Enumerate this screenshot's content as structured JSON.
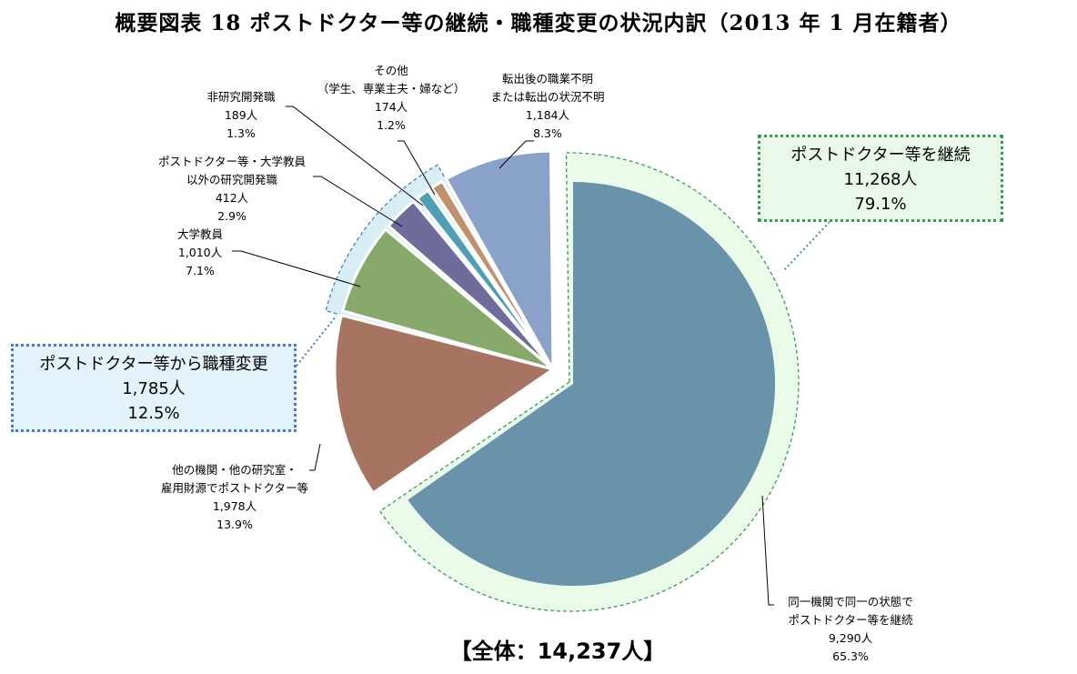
{
  "title": "概要図表 18 ポストドクター等の継続・職種変更の状況内訳（2013 年 1 月在籍者）",
  "chart_data": {
    "type": "pie",
    "title": "概要図表 18 ポストドクター等の継続・職種変更の状況内訳（2013 年 1 月在籍者）",
    "total_label": "【全体：14,237人】",
    "start": "top",
    "direction": "clockwise",
    "slices": [
      {
        "lines": [
          "同一機関で同一の状態で",
          "ポストドクター等を継続"
        ],
        "count": "9,290人",
        "value": 9290,
        "percent": "65.3%",
        "color": "#6893aa",
        "group": "continue"
      },
      {
        "lines": [
          "他の機関・他の研究室・",
          "雇用財源でポストドクター等"
        ],
        "count": "1,978人",
        "value": 1978,
        "percent": "13.9%",
        "color": "#a87462",
        "group": "other"
      },
      {
        "lines": [
          "大学教員"
        ],
        "count": "1,010人",
        "value": 1010,
        "percent": "7.1%",
        "color": "#87a96b",
        "group": "change"
      },
      {
        "lines": [
          "ポストドクター等・大学教員",
          "以外の研究開発職"
        ],
        "count": "412人",
        "value": 412,
        "percent": "2.9%",
        "color": "#6f6c9b",
        "group": "change"
      },
      {
        "lines": [
          "非研究開発職"
        ],
        "count": "189人",
        "value": 189,
        "percent": "1.3%",
        "color": "#4e9fb5",
        "group": "change"
      },
      {
        "lines": [
          "その他",
          "（学生、専業主夫・婦など）"
        ],
        "count": "174人",
        "value": 174,
        "percent": "1.2%",
        "color": "#c0916a",
        "group": "change"
      },
      {
        "lines": [
          "転出後の職業不明",
          "または転出の状況不明"
        ],
        "count": "1,184人",
        "value": 1184,
        "percent": "8.3%",
        "color": "#8aa2c8",
        "group": "other"
      }
    ],
    "callouts": [
      {
        "id": "change",
        "lines": [
          "ポストドクター等から職種変更",
          "1,785人",
          "12.5%"
        ],
        "color": "#4a7cc9"
      },
      {
        "id": "continue",
        "lines": [
          "ポストドクター等を継続",
          "11,268人",
          "79.1%"
        ],
        "color": "#3a9a5a"
      }
    ]
  }
}
